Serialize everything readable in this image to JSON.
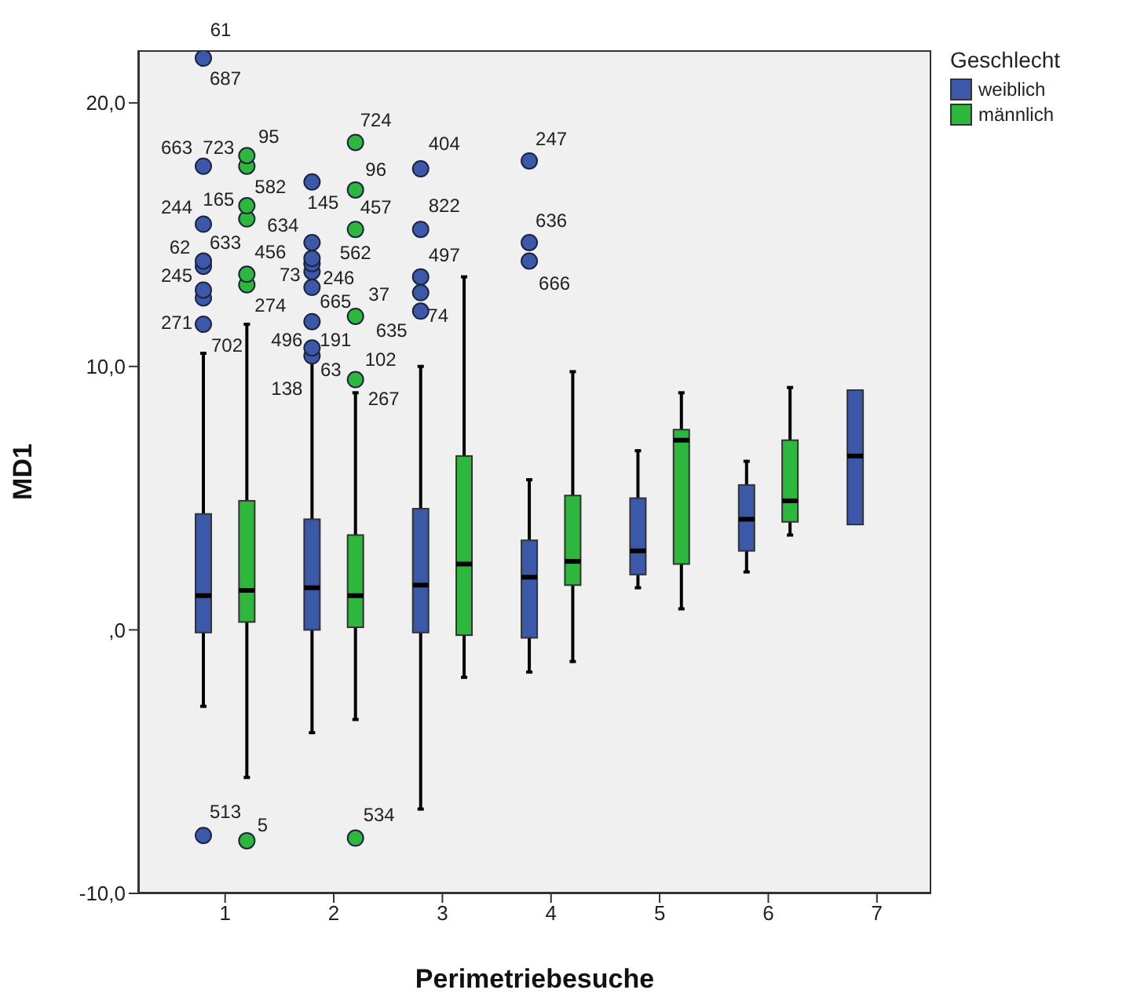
{
  "chart_data": {
    "type": "box",
    "xlabel": "Perimetriebesuche",
    "ylabel": "MD1",
    "legend_title": "Geschlecht",
    "legend": "top right",
    "categories": [
      "1",
      "2",
      "3",
      "4",
      "5",
      "6",
      "7"
    ],
    "ylim": [
      -10,
      22
    ],
    "yticks": [
      {
        "value": -10,
        "label": "-10,0"
      },
      {
        "value": 0,
        "label": ",0"
      },
      {
        "value": 10,
        "label": "10,0"
      },
      {
        "value": 20,
        "label": "20,0"
      }
    ],
    "series": [
      {
        "name": "weiblich",
        "color": "#3c58a8",
        "boxes": [
          {
            "low": -2.9,
            "q1": -0.1,
            "median": 1.3,
            "q3": 4.4,
            "high": 10.5,
            "outliers": [
              -7.8,
              11.6,
              12.6,
              12.9,
              13.8,
              14.0,
              15.4,
              17.6,
              21.7
            ]
          },
          {
            "low": -3.9,
            "q1": 0.0,
            "median": 1.6,
            "q3": 4.2,
            "high": 10.2,
            "outliers": [
              10.4,
              10.7,
              11.7,
              13.0,
              13.6,
              13.9,
              14.1,
              14.7,
              17.0
            ]
          },
          {
            "low": -6.8,
            "q1": -0.1,
            "median": 1.7,
            "q3": 4.6,
            "high": 10.0,
            "outliers": [
              12.1,
              12.8,
              13.4,
              15.2,
              17.5
            ]
          },
          {
            "low": -1.6,
            "q1": -0.3,
            "median": 2.0,
            "q3": 3.4,
            "high": 5.7,
            "outliers": [
              14.0,
              14.7,
              17.8
            ]
          },
          {
            "low": 1.6,
            "q1": 2.1,
            "median": 3.0,
            "q3": 5.0,
            "high": 6.8
          },
          {
            "low": 2.2,
            "q1": 3.0,
            "median": 4.2,
            "q3": 5.5,
            "high": 6.4
          },
          {
            "low": 4.0,
            "q1": 4.0,
            "median": 6.6,
            "q3": 9.1,
            "high": 9.1
          }
        ]
      },
      {
        "name": "männlich",
        "color": "#2db83d",
        "boxes": [
          {
            "low": -5.6,
            "q1": 0.3,
            "median": 1.5,
            "q3": 4.9,
            "high": 11.6,
            "outliers": [
              -8.0,
              13.1,
              13.5,
              15.6,
              16.1,
              17.6,
              18.0
            ]
          },
          {
            "low": -3.4,
            "q1": 0.1,
            "median": 1.3,
            "q3": 3.6,
            "high": 9.0,
            "outliers": [
              -7.9,
              9.5,
              11.9,
              15.2,
              16.7,
              18.5
            ]
          },
          {
            "low": -1.8,
            "q1": -0.2,
            "median": 2.5,
            "q3": 6.6,
            "high": 13.4
          },
          {
            "low": -1.2,
            "q1": 1.7,
            "median": 2.6,
            "q3": 5.1,
            "high": 9.8
          },
          {
            "low": 0.8,
            "q1": 2.5,
            "median": 7.2,
            "q3": 7.6,
            "high": 9.0
          },
          {
            "low": 3.6,
            "q1": 4.1,
            "median": 4.9,
            "q3": 7.2,
            "high": 9.2
          },
          null
        ]
      }
    ],
    "annotations": [
      "61",
      "687",
      "663",
      "244",
      "62",
      "633",
      "245",
      "271",
      "702",
      "513",
      "95",
      "723",
      "582",
      "165",
      "634",
      "456",
      "274",
      "5",
      "145",
      "73",
      "246",
      "665",
      "496",
      "191",
      "138",
      "63",
      "724",
      "96",
      "457",
      "562",
      "37",
      "635",
      "102",
      "267",
      "534",
      "404",
      "822",
      "497",
      "74",
      "247",
      "636",
      "666"
    ]
  }
}
